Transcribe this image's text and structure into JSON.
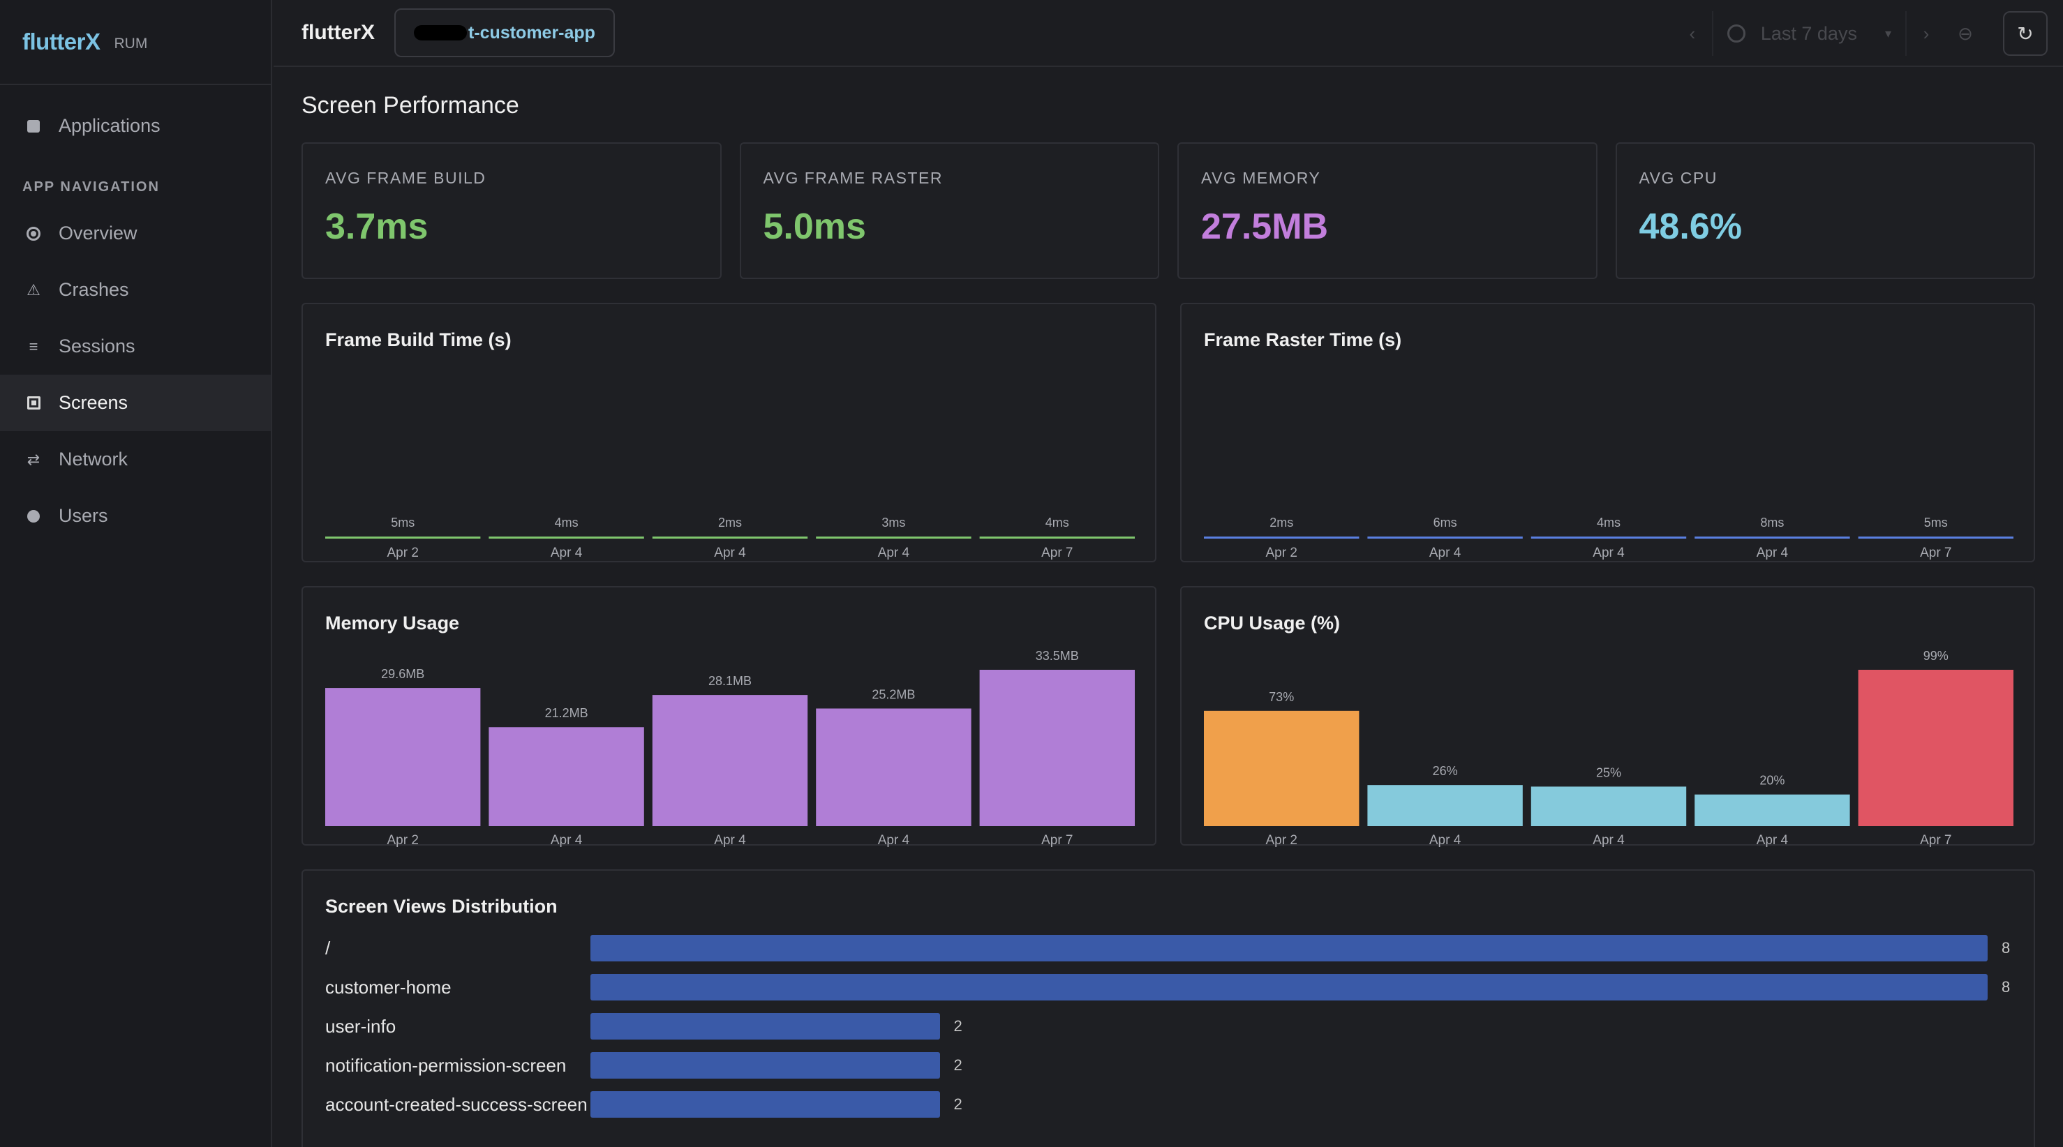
{
  "sidebar": {
    "logo": "flutterX",
    "badge": "RUM",
    "top_item": "Applications",
    "section": "APP NAVIGATION",
    "items": [
      "Overview",
      "Crashes",
      "Sessions",
      "Screens",
      "Network",
      "Users"
    ],
    "active": "Screens"
  },
  "header": {
    "title": "flutterX",
    "app_name_visible": "t-customer-app",
    "time_range": "Last 7 days"
  },
  "page": {
    "title": "Screen Performance"
  },
  "kpis": [
    {
      "label": "AVG FRAME BUILD",
      "value": "3.7ms",
      "color": "#7fc66d"
    },
    {
      "label": "AVG FRAME RASTER",
      "value": "5.0ms",
      "color": "#7fc66d"
    },
    {
      "label": "AVG MEMORY",
      "value": "27.5MB",
      "color": "#c27edc"
    },
    {
      "label": "AVG CPU",
      "value": "48.6%",
      "color": "#7fcde3"
    }
  ],
  "chart_data": [
    {
      "type": "bar",
      "title": "Frame Build Time (s)",
      "categories": [
        "Apr 2",
        "Apr 4",
        "Apr 4",
        "Apr 4",
        "Apr 7"
      ],
      "labels": [
        "5ms",
        "4ms",
        "2ms",
        "3ms",
        "4ms"
      ],
      "values": [
        0.005,
        0.004,
        0.002,
        0.003,
        0.004
      ],
      "unit": "s",
      "color": "#7fc66d"
    },
    {
      "type": "bar",
      "title": "Frame Raster Time (s)",
      "categories": [
        "Apr 2",
        "Apr 4",
        "Apr 4",
        "Apr 4",
        "Apr 7"
      ],
      "labels": [
        "2ms",
        "6ms",
        "4ms",
        "8ms",
        "5ms"
      ],
      "values": [
        0.002,
        0.006,
        0.004,
        0.008,
        0.005
      ],
      "unit": "s",
      "color": "#5a7fe0"
    },
    {
      "type": "bar",
      "title": "Memory Usage",
      "categories": [
        "Apr 2",
        "Apr 4",
        "Apr 4",
        "Apr 4",
        "Apr 7"
      ],
      "labels": [
        "29.6MB",
        "21.2MB",
        "28.1MB",
        "25.2MB",
        "33.5MB"
      ],
      "values": [
        29.6,
        21.2,
        28.1,
        25.2,
        33.5
      ],
      "unit": "MB",
      "color": "#b07ed6"
    },
    {
      "type": "bar",
      "title": "CPU Usage (%)",
      "categories": [
        "Apr 2",
        "Apr 4",
        "Apr 4",
        "Apr 4",
        "Apr 7"
      ],
      "labels": [
        "73%",
        "26%",
        "25%",
        "20%",
        "99%"
      ],
      "values": [
        73,
        26,
        25,
        20,
        99
      ],
      "unit": "%",
      "colors": [
        "#f0a04b",
        "#85cadc",
        "#85cadc",
        "#85cadc",
        "#e05563"
      ]
    },
    {
      "type": "bar",
      "orientation": "horizontal",
      "title": "Screen Views Distribution",
      "categories": [
        "/",
        "customer-home",
        "user-info",
        "notification-permission-screen",
        "account-created-success-screen"
      ],
      "values": [
        8,
        8,
        2,
        2,
        2
      ],
      "color": "#3a5aa8"
    }
  ]
}
